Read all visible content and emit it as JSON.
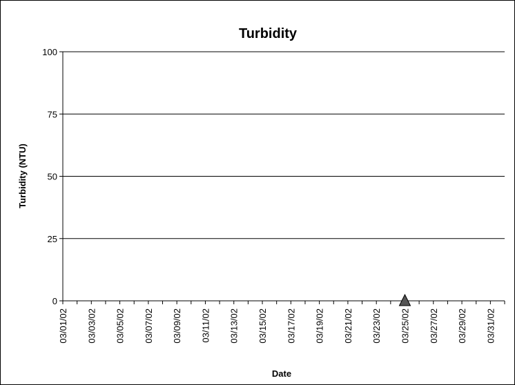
{
  "chart_data": {
    "type": "scatter",
    "title": "Turbidity",
    "xlabel": "Date",
    "ylabel": "Turbidity (NTU)",
    "ylim": [
      0,
      100
    ],
    "yticks": [
      "0",
      "25",
      "50",
      "75",
      "100"
    ],
    "xlim": [
      "03/01/02",
      "04/01/02"
    ],
    "xticks": [
      "03/01/02",
      "03/03/02",
      "03/05/02",
      "03/07/02",
      "03/09/02",
      "03/11/02",
      "03/13/02",
      "03/15/02",
      "03/17/02",
      "03/19/02",
      "03/21/02",
      "03/23/02",
      "03/25/02",
      "03/27/02",
      "03/29/02",
      "03/31/02"
    ],
    "grid": true,
    "legend": "none",
    "series": [
      {
        "marker": "triangle",
        "color": "#555555",
        "points": [
          {
            "x": "03/25/02",
            "y": 0
          }
        ]
      }
    ]
  }
}
